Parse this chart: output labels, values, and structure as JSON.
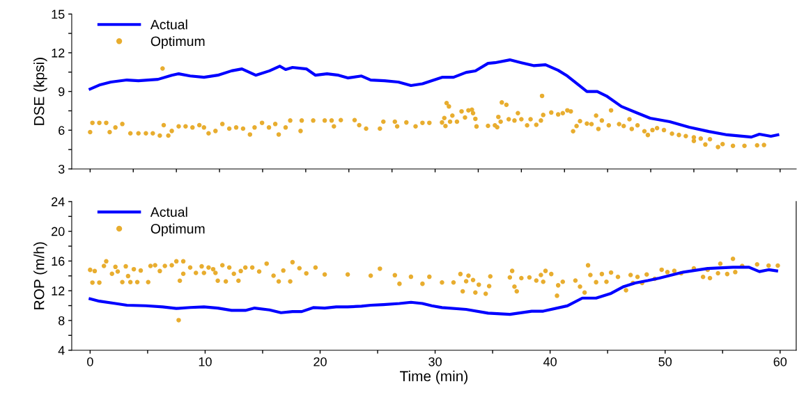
{
  "chart_data": [
    {
      "type": "line",
      "ylabel": "DSE (kpsi)",
      "xlim": [
        -1.6,
        61.4
      ],
      "xticks": [
        {
          "value": 0,
          "label": null
        },
        {
          "value": 3.75,
          "label": null
        },
        {
          "value": 7.5,
          "label": null
        },
        {
          "value": 11.25,
          "label": null
        },
        {
          "value": 15,
          "label": null
        },
        {
          "value": 18.75,
          "label": null
        },
        {
          "value": 22.5,
          "label": null
        },
        {
          "value": 26.25,
          "label": null
        },
        {
          "value": 30,
          "label": null
        },
        {
          "value": 33.75,
          "label": null
        },
        {
          "value": 37.5,
          "label": null
        },
        {
          "value": 41.25,
          "label": null
        },
        {
          "value": 45,
          "label": null
        },
        {
          "value": 48.75,
          "label": null
        },
        {
          "value": 52.5,
          "label": null
        },
        {
          "value": 56.25,
          "label": null
        },
        {
          "value": 60,
          "label": null
        }
      ],
      "ylim": [
        3,
        15
      ],
      "yticks": [
        3,
        {
          "value": 4.5,
          "label": null
        },
        6,
        {
          "value": 7.5,
          "label": null
        },
        9,
        {
          "value": 10.5,
          "label": null
        },
        12,
        {
          "value": 13.5,
          "label": null
        },
        15
      ],
      "tick_labels": "y",
      "legend": "top left",
      "grid": false,
      "series": [
        {
          "name": "Actual",
          "color": "#0000ff",
          "marker": "none",
          "line_style": "solid",
          "x": [
            0,
            0.8,
            1.8,
            3.2,
            4.2,
            5.9,
            7.1,
            7.7,
            8.7,
            9.9,
            11.1,
            12.3,
            13.2,
            14.4,
            15.6,
            16.5,
            17.0,
            17.6,
            18.8,
            19.6,
            20.6,
            21.6,
            22.4,
            23.6,
            24.4,
            25.6,
            26.8,
            27.9,
            28.9,
            30.6,
            31.6,
            32.7,
            33.5,
            34.6,
            35.2,
            36.5,
            37.5,
            38.6,
            39.6,
            40.7,
            41.5,
            42.4,
            43.2,
            44.1,
            44.9,
            46.2,
            47.5,
            48.7,
            50.4,
            52.1,
            53.8,
            55.4,
            57.5,
            58.2,
            59.2,
            59.8
          ],
          "values": [
            9.19,
            9.5,
            9.73,
            9.89,
            9.83,
            9.94,
            10.26,
            10.37,
            10.2,
            10.1,
            10.26,
            10.6,
            10.75,
            10.26,
            10.6,
            10.96,
            10.7,
            10.86,
            10.75,
            10.26,
            10.37,
            10.26,
            10.05,
            10.2,
            9.89,
            9.83,
            9.73,
            9.46,
            9.6,
            10.1,
            10.1,
            10.48,
            10.59,
            11.18,
            11.23,
            11.45,
            11.23,
            11.0,
            11.07,
            10.64,
            10.2,
            9.56,
            9.0,
            9.0,
            8.65,
            7.84,
            7.36,
            6.93,
            6.66,
            6.23,
            5.9,
            5.64,
            5.47,
            5.69,
            5.53,
            5.64
          ]
        },
        {
          "name": "Optimum",
          "type": "scatter",
          "color": "#e8ad2f",
          "marker": "circle",
          "x": [
            0,
            0.2,
            0.8,
            1.4,
            1.7,
            2.2,
            2.8,
            3.5,
            4.2,
            4.85,
            5.45,
            6.06,
            6.3,
            6.4,
            6.8,
            7.1,
            7.7,
            8.3,
            8.9,
            9.5,
            9.9,
            10.3,
            10.9,
            11.5,
            12.1,
            12.7,
            13.3,
            13.9,
            14.3,
            14.95,
            15.55,
            16.1,
            16.4,
            17.0,
            17.4,
            18.3,
            18.4,
            19.4,
            20.4,
            21.0,
            21.2,
            21.8,
            23.0,
            23.4,
            24.0,
            25.2,
            25.5,
            26.5,
            26.7,
            27.5,
            28.3,
            28.9,
            29.5,
            30.6,
            30.8,
            30.9,
            31.0,
            31.2,
            31.3,
            31.5,
            31.9,
            32.3,
            32.6,
            32.9,
            33.2,
            33.3,
            33.5,
            33.6,
            34.6,
            35.2,
            35.4,
            35.5,
            35.7,
            35.8,
            36.2,
            36.4,
            36.9,
            37.2,
            37.5,
            38.0,
            38.3,
            38.8,
            39.2,
            39.3,
            39.4,
            40.1,
            40.7,
            41.1,
            41.5,
            41.8,
            42.0,
            42.3,
            42.6,
            43.2,
            43.6,
            44.0,
            44.2,
            44.5,
            45.1,
            45.3,
            46.0,
            46.4,
            46.9,
            47.1,
            47.6,
            48.2,
            48.5,
            48.9,
            49.3,
            49.9,
            50.6,
            51.2,
            51.8,
            52.5,
            52.5,
            53.1,
            53.5,
            53.9,
            54.6,
            55.0,
            55.9,
            56.9,
            58.0,
            58.6
          ],
          "values": [
            5.85,
            6.57,
            6.57,
            6.57,
            5.85,
            6.21,
            6.48,
            5.76,
            5.76,
            5.76,
            5.76,
            5.58,
            10.78,
            6.39,
            5.58,
            5.94,
            6.3,
            6.3,
            6.21,
            6.39,
            6.21,
            5.76,
            5.94,
            6.48,
            6.12,
            6.21,
            6.12,
            5.67,
            6.21,
            6.57,
            6.21,
            6.48,
            5.67,
            6.21,
            6.75,
            5.94,
            6.75,
            6.75,
            6.75,
            6.75,
            6.3,
            6.78,
            6.78,
            6.39,
            6.12,
            6.12,
            6.66,
            6.66,
            6.3,
            6.6,
            6.3,
            6.57,
            6.57,
            6.6,
            6.94,
            6.32,
            8.1,
            7.84,
            6.66,
            7.13,
            6.66,
            7.46,
            6.98,
            7.54,
            7.59,
            7.32,
            6.88,
            6.29,
            6.34,
            6.38,
            6.23,
            7.03,
            6.66,
            8.15,
            7.97,
            6.85,
            6.75,
            7.32,
            6.85,
            6.38,
            6.85,
            6.42,
            6.75,
            8.66,
            7.18,
            7.37,
            7.22,
            7.32,
            7.54,
            7.46,
            5.92,
            6.32,
            6.7,
            6.51,
            6.47,
            7.13,
            6.1,
            6.75,
            6.38,
            7.54,
            6.47,
            6.32,
            6.85,
            6.1,
            6.38,
            5.92,
            5.63,
            6.01,
            6.16,
            6.01,
            5.73,
            5.63,
            5.54,
            5.45,
            5.17,
            5.35,
            4.89,
            5.3,
            4.7,
            4.92,
            4.79,
            4.79,
            4.83,
            4.85
          ]
        }
      ]
    },
    {
      "type": "line",
      "xlabel": "Time (min)",
      "ylabel": "ROP (m/h)",
      "xlim": [
        -1.6,
        61.4
      ],
      "xticks": [
        0,
        {
          "value": 5,
          "label": null
        },
        10,
        {
          "value": 15,
          "label": null
        },
        20,
        {
          "value": 25,
          "label": null
        },
        30,
        {
          "value": 35,
          "label": null
        },
        40,
        {
          "value": 45,
          "label": null
        },
        50,
        {
          "value": 55,
          "label": null
        },
        60
      ],
      "ylim": [
        4,
        24
      ],
      "yticks": [
        4,
        {
          "value": 6,
          "label": null
        },
        8,
        {
          "value": 10,
          "label": null
        },
        12,
        {
          "value": 14,
          "label": null
        },
        16,
        {
          "value": 18,
          "label": null
        },
        20,
        {
          "value": 22,
          "label": null
        },
        24
      ],
      "legend": "top left",
      "grid": false,
      "series": [
        {
          "name": "Actual",
          "color": "#0000ff",
          "marker": "none",
          "line_style": "solid",
          "x": [
            0,
            0.8,
            2.2,
            3.2,
            4.85,
            6.3,
            7.5,
            8.7,
            9.9,
            11.1,
            12.3,
            13.5,
            14.3,
            15.6,
            16.6,
            17.6,
            18.4,
            19.4,
            20.4,
            21.4,
            22.4,
            23.6,
            24.4,
            25.5,
            26.9,
            27.9,
            28.9,
            29.7,
            30.6,
            32.7,
            34.6,
            36.5,
            38.4,
            39.4,
            41.5,
            42.8,
            44.0,
            45.3,
            46.4,
            47.4,
            48.5,
            49.5,
            51.6,
            53.7,
            55.9,
            57.3,
            58.2,
            59.0,
            59.7
          ],
          "values": [
            10.92,
            10.6,
            10.29,
            10.05,
            9.98,
            9.83,
            9.62,
            9.75,
            9.83,
            9.67,
            9.36,
            9.36,
            9.67,
            9.42,
            9.05,
            9.2,
            9.2,
            9.73,
            9.67,
            9.83,
            9.83,
            9.92,
            10.05,
            10.14,
            10.29,
            10.45,
            10.29,
            9.98,
            9.74,
            9.49,
            8.99,
            8.83,
            9.25,
            9.25,
            9.97,
            11.01,
            11.01,
            11.65,
            12.56,
            13.05,
            13.37,
            13.7,
            14.51,
            15.0,
            15.16,
            15.16,
            14.58,
            14.83,
            14.67
          ]
        },
        {
          "name": "Optimum",
          "type": "scatter",
          "color": "#e8ad2f",
          "marker": "circle",
          "x": [
            0,
            0.2,
            0.4,
            0.8,
            1.2,
            1.4,
            1.9,
            2.2,
            2.4,
            2.8,
            3.1,
            3.3,
            3.5,
            3.8,
            4.1,
            4.4,
            5.05,
            5.25,
            5.65,
            6.06,
            6.5,
            7.1,
            7.5,
            7.7,
            7.8,
            8.1,
            8.1,
            8.7,
            9.2,
            9.7,
            9.9,
            10.3,
            10.7,
            10.9,
            11.1,
            11.5,
            11.8,
            12.1,
            12.5,
            12.9,
            13.1,
            13.5,
            14.1,
            14.7,
            15.35,
            15.95,
            16.4,
            16.8,
            17.4,
            17.6,
            18.2,
            18.8,
            19.6,
            20.4,
            22.4,
            24.4,
            25.2,
            26.5,
            26.9,
            27.9,
            28.9,
            29.5,
            30.6,
            31.6,
            32.2,
            32.4,
            32.7,
            32.9,
            33.3,
            33.5,
            33.8,
            34.4,
            34.7,
            34.8,
            36.5,
            36.7,
            36.9,
            37.1,
            37.5,
            38.2,
            38.8,
            39.2,
            39.4,
            39.6,
            40.1,
            40.6,
            40.7,
            41.1,
            42.2,
            42.6,
            43.0,
            43.3,
            43.5,
            44.0,
            44.5,
            44.9,
            45.3,
            45.9,
            46.6,
            47.0,
            47.2,
            47.6,
            48.0,
            48.4,
            49.1,
            49.7,
            50.2,
            50.8,
            51.4,
            52.5,
            53.3,
            53.7,
            53.9,
            54.6,
            54.8,
            55.4,
            55.9,
            56.1,
            56.7,
            58.0,
            59.0,
            59.8
          ],
          "values": [
            14.81,
            13.1,
            14.65,
            13.1,
            15.34,
            15.96,
            14.28,
            15.21,
            14.59,
            13.16,
            15.28,
            13.97,
            13.16,
            14.9,
            13.16,
            14.72,
            13.16,
            15.34,
            15.43,
            14.65,
            15.34,
            15.43,
            15.96,
            8.05,
            13.35,
            15.96,
            14.28,
            15.12,
            14.4,
            15.28,
            14.4,
            15.12,
            14.9,
            14.4,
            13.35,
            15.43,
            13.25,
            15.12,
            14.28,
            13.35,
            14.65,
            15.12,
            15.12,
            14.59,
            15.65,
            14.03,
            13.25,
            14.72,
            13.25,
            15.84,
            15.03,
            14.34,
            15.12,
            14.19,
            14.19,
            14.03,
            14.97,
            14.09,
            12.94,
            13.88,
            12.94,
            13.88,
            13.11,
            13.11,
            14.25,
            11.92,
            13.28,
            14.03,
            13.44,
            11.76,
            12.82,
            11.59,
            12.63,
            13.93,
            13.79,
            14.67,
            12.56,
            11.92,
            13.7,
            13.79,
            13.37,
            14.12,
            13.21,
            14.67,
            14.25,
            11.33,
            12.73,
            13.21,
            13.37,
            12.56,
            11.76,
            15.42,
            14.12,
            13.15,
            14.25,
            13.21,
            14.45,
            13.86,
            12.07,
            14.12,
            13.05,
            13.86,
            13.05,
            14.19,
            13.6,
            14.83,
            14.51,
            14.67,
            14.35,
            15.0,
            13.86,
            14.83,
            13.7,
            14.35,
            15.64,
            14.25,
            16.3,
            14.51,
            15.33,
            15.55,
            15.39,
            15.39
          ]
        }
      ]
    }
  ]
}
